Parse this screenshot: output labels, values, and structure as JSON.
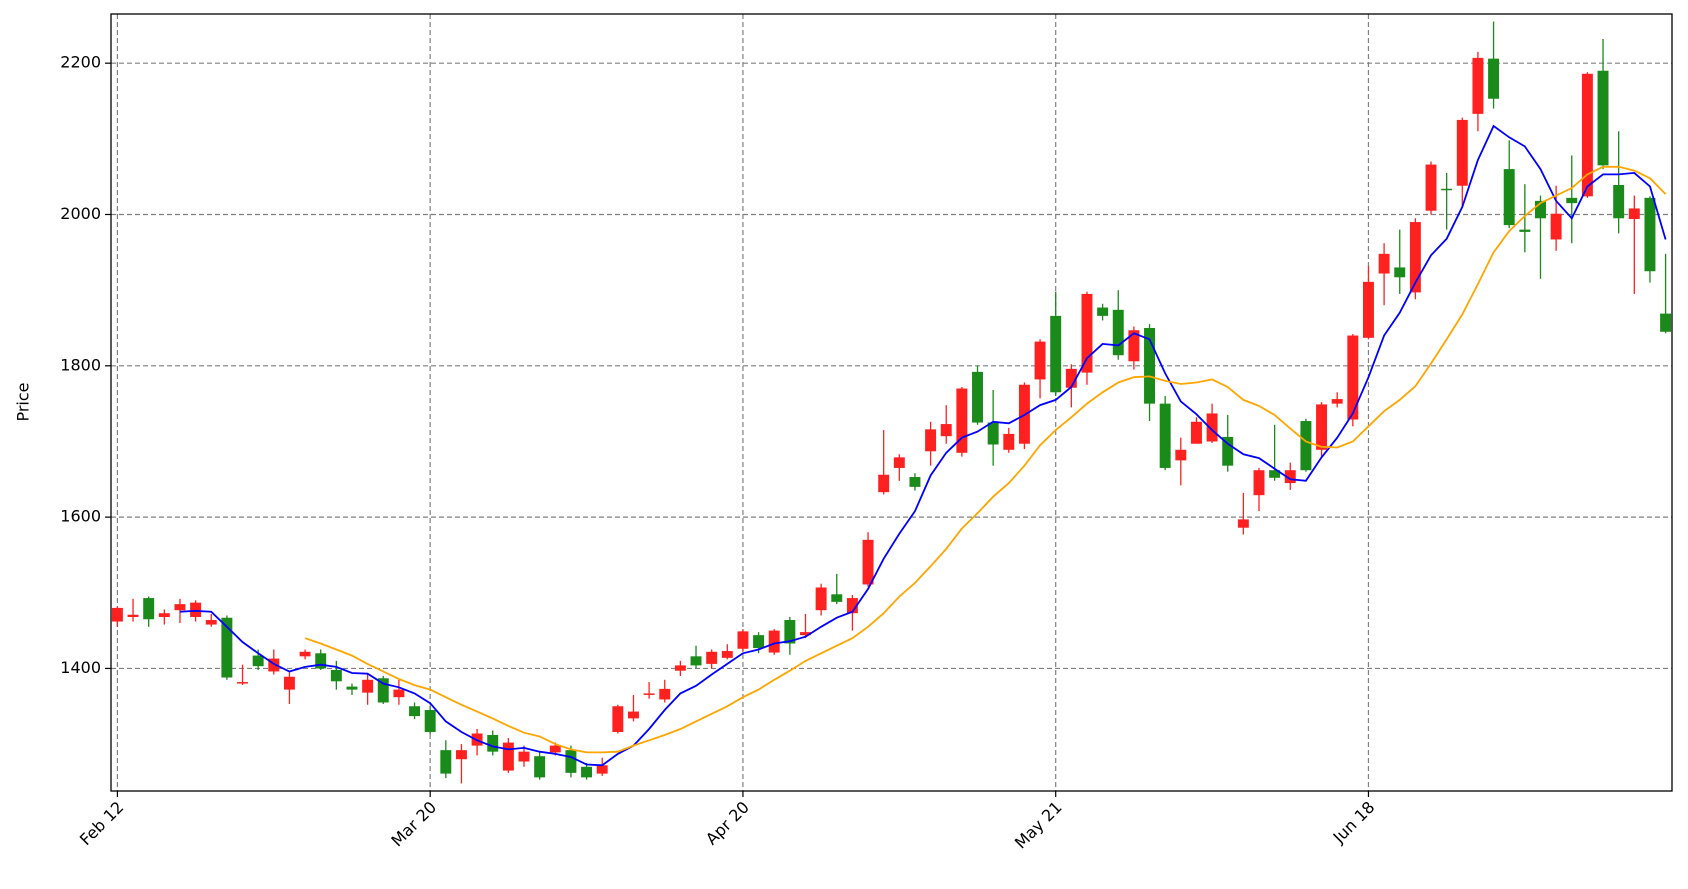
{
  "chart_data": {
    "type": "candlestick",
    "ylabel": "Price",
    "ylim": [
      1238,
      2265
    ],
    "yticks": [
      1400,
      1600,
      1800,
      2000,
      2200
    ],
    "grid": true,
    "up_color": "#ff2020",
    "down_color": "#1a8a1a",
    "categories": [
      "Feb 12",
      null,
      null,
      null,
      null,
      null,
      null,
      null,
      null,
      null,
      null,
      null,
      null,
      null,
      null,
      null,
      null,
      null,
      null,
      null,
      "Mar 20",
      null,
      null,
      null,
      null,
      null,
      null,
      null,
      null,
      null,
      null,
      null,
      null,
      null,
      null,
      null,
      null,
      null,
      null,
      null,
      "Apr 20",
      null,
      null,
      null,
      null,
      null,
      null,
      null,
      null,
      null,
      null,
      null,
      null,
      null,
      null,
      null,
      null,
      null,
      null,
      null,
      "May 21",
      null,
      null,
      null,
      null,
      null,
      null,
      null,
      null,
      null,
      null,
      null,
      null,
      null,
      null,
      null,
      null,
      null,
      null,
      null,
      "Jun 18",
      null,
      null,
      null,
      null,
      null,
      null,
      null,
      null,
      null,
      null,
      null,
      null,
      null,
      null,
      null,
      null,
      null,
      null,
      null
    ],
    "open": [
      1462,
      1468,
      1493,
      1468,
      1477,
      1468,
      1458,
      1467,
      1380,
      1417,
      1396,
      1372,
      1416,
      1420,
      1398,
      1376,
      1368,
      1387,
      1362,
      1350,
      1345,
      1292,
      1280,
      1298,
      1312,
      1265,
      1277,
      1284,
      1289,
      1292,
      1270,
      1261,
      1316,
      1334,
      1365,
      1359,
      1397,
      1416,
      1406,
      1414,
      1426,
      1444,
      1421,
      1464,
      1444,
      1477,
      1498,
      1473,
      1511,
      1633,
      1665,
      1653,
      1687,
      1707,
      1685,
      1792,
      1725,
      1689,
      1697,
      1782,
      1866,
      1771,
      1791,
      1877,
      1874,
      1806,
      1850,
      1750,
      1675,
      1697,
      1700,
      1706,
      1586,
      1629,
      1662,
      1645,
      1727,
      1689,
      1750,
      1729,
      1837,
      1922,
      1930,
      1897,
      2005,
      2034,
      2038,
      2133,
      2206,
      2060,
      1980,
      2018,
      1967,
      2022,
      2024,
      2190,
      2039,
      1994,
      2022,
      1869
    ],
    "high": [
      1482,
      1492,
      1495,
      1478,
      1492,
      1490,
      1472,
      1470,
      1405,
      1425,
      1425,
      1395,
      1425,
      1425,
      1410,
      1380,
      1392,
      1390,
      1385,
      1355,
      1350,
      1305,
      1300,
      1320,
      1318,
      1308,
      1298,
      1290,
      1302,
      1298,
      1275,
      1282,
      1352,
      1365,
      1382,
      1385,
      1410,
      1430,
      1425,
      1432,
      1452,
      1448,
      1452,
      1468,
      1472,
      1512,
      1525,
      1497,
      1580,
      1715,
      1683,
      1658,
      1726,
      1748,
      1772,
      1800,
      1768,
      1718,
      1778,
      1835,
      1898,
      1802,
      1898,
      1882,
      1900,
      1852,
      1855,
      1760,
      1705,
      1732,
      1750,
      1735,
      1632,
      1665,
      1722,
      1672,
      1730,
      1752,
      1765,
      1842,
      1932,
      1962,
      1980,
      1995,
      2070,
      2055,
      2128,
      2215,
      2255,
      2098,
      2040,
      2025,
      2038,
      2078,
      2188,
      2232,
      2110,
      2025,
      2024,
      1948
    ],
    "low": [
      1455,
      1462,
      1455,
      1458,
      1460,
      1462,
      1455,
      1385,
      1378,
      1398,
      1392,
      1353,
      1412,
      1398,
      1372,
      1365,
      1352,
      1353,
      1352,
      1333,
      1313,
      1255,
      1248,
      1285,
      1285,
      1262,
      1270,
      1253,
      1285,
      1256,
      1253,
      1258,
      1314,
      1330,
      1360,
      1355,
      1390,
      1400,
      1400,
      1412,
      1422,
      1420,
      1418,
      1418,
      1440,
      1470,
      1485,
      1450,
      1508,
      1630,
      1648,
      1635,
      1668,
      1697,
      1680,
      1722,
      1668,
      1685,
      1690,
      1757,
      1760,
      1745,
      1775,
      1860,
      1808,
      1795,
      1727,
      1662,
      1642,
      1697,
      1698,
      1660,
      1577,
      1608,
      1648,
      1636,
      1660,
      1680,
      1745,
      1720,
      1835,
      1880,
      1895,
      1888,
      2000,
      1980,
      2010,
      2110,
      2140,
      1982,
      1950,
      1915,
      1952,
      1962,
      2022,
      2060,
      1975,
      1895,
      1910,
      1843
    ],
    "close": [
      1480,
      1471,
      1465,
      1473,
      1485,
      1487,
      1464,
      1388,
      1382,
      1403,
      1413,
      1389,
      1422,
      1400,
      1383,
      1372,
      1385,
      1355,
      1372,
      1337,
      1316,
      1261,
      1292,
      1314,
      1290,
      1302,
      1290,
      1256,
      1298,
      1262,
      1256,
      1272,
      1350,
      1343,
      1367,
      1373,
      1404,
      1404,
      1422,
      1423,
      1449,
      1427,
      1450,
      1433,
      1448,
      1507,
      1488,
      1493,
      1570,
      1656,
      1679,
      1640,
      1716,
      1723,
      1770,
      1725,
      1696,
      1710,
      1775,
      1832,
      1765,
      1796,
      1895,
      1866,
      1814,
      1847,
      1750,
      1665,
      1689,
      1726,
      1737,
      1668,
      1597,
      1662,
      1652,
      1662,
      1662,
      1749,
      1756,
      1840,
      1911,
      1948,
      1917,
      1990,
      2066,
      2032,
      2125,
      2207,
      2153,
      1986,
      1977,
      1995,
      2001,
      2015,
      2186,
      2065,
      1995,
      2008,
      1925,
      1845
    ],
    "series": [
      {
        "color": "#0000ff",
        "values": [
          null,
          null,
          null,
          null,
          1475,
          1476,
          1475,
          1455,
          1435,
          1420,
          1406,
          1396,
          1402,
          1405,
          1402,
          1394,
          1393,
          1380,
          1375,
          1367,
          1354,
          1330,
          1316,
          1305,
          1297,
          1293,
          1295,
          1290,
          1287,
          1283,
          1273,
          1272,
          1287,
          1298,
          1320,
          1345,
          1367,
          1377,
          1392,
          1406,
          1420,
          1425,
          1433,
          1436,
          1442,
          1455,
          1467,
          1475,
          1505,
          1545,
          1578,
          1608,
          1655,
          1685,
          1705,
          1713,
          1726,
          1724,
          1735,
          1748,
          1755,
          1772,
          1810,
          1829,
          1827,
          1843,
          1835,
          1790,
          1753,
          1736,
          1715,
          1697,
          1683,
          1678,
          1664,
          1650,
          1648,
          1679,
          1705,
          1737,
          1785,
          1840,
          1870,
          1910,
          1946,
          1968,
          2010,
          2072,
          2117,
          2102,
          2090,
          2060,
          2018,
          1995,
          2037,
          2053,
          2053,
          2055,
          2037,
          1967
        ]
      },
      {
        "color": "#ffa500",
        "values": [
          null,
          null,
          null,
          null,
          null,
          null,
          null,
          null,
          null,
          null,
          null,
          null,
          1440,
          1433,
          1425,
          1417,
          1406,
          1396,
          1386,
          1378,
          1372,
          1362,
          1352,
          1343,
          1334,
          1324,
          1315,
          1310,
          1300,
          1293,
          1289,
          1289,
          1290,
          1298,
          1305,
          1312,
          1320,
          1330,
          1340,
          1350,
          1362,
          1372,
          1385,
          1397,
          1410,
          1420,
          1430,
          1440,
          1455,
          1473,
          1495,
          1513,
          1535,
          1558,
          1585,
          1605,
          1627,
          1645,
          1668,
          1695,
          1715,
          1732,
          1750,
          1765,
          1778,
          1785,
          1786,
          1780,
          1776,
          1778,
          1782,
          1772,
          1755,
          1747,
          1735,
          1717,
          1700,
          1693,
          1692,
          1700,
          1720,
          1740,
          1755,
          1773,
          1803,
          1835,
          1868,
          1908,
          1950,
          1978,
          1998,
          2015,
          2025,
          2035,
          2053,
          2063,
          2063,
          2058,
          2048,
          2027
        ]
      }
    ]
  }
}
